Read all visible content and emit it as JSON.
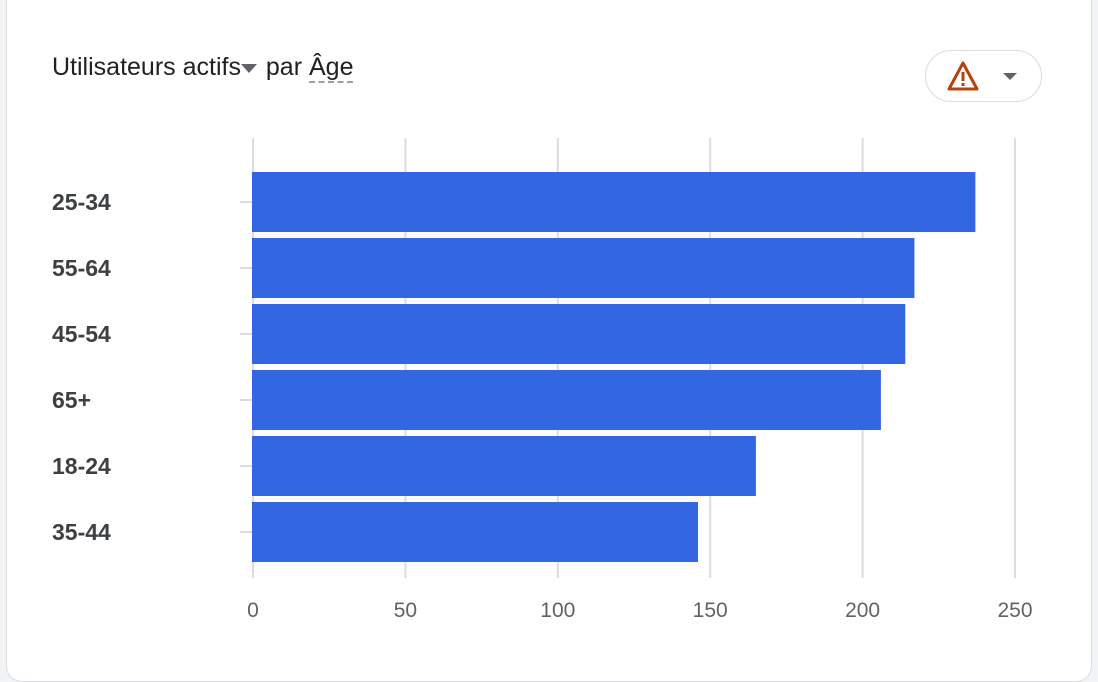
{
  "header": {
    "metric": "Utilisateurs actifs",
    "connector": "par",
    "dimension": "Âge"
  },
  "warning_button": {
    "icon": "warning-icon",
    "color": "#b7410e"
  },
  "chart_data": {
    "type": "bar",
    "orientation": "horizontal",
    "categories": [
      "25-34",
      "55-64",
      "45-54",
      "65+",
      "18-24",
      "35-44"
    ],
    "values": [
      237,
      217,
      214,
      206,
      165,
      146
    ],
    "xlim": [
      0,
      250
    ],
    "xticks": [
      "0",
      "50",
      "100",
      "150",
      "200",
      "250"
    ],
    "xtick_values": [
      0,
      50,
      100,
      150,
      200,
      250
    ],
    "grid": true,
    "bar_color": "#3367e1"
  }
}
